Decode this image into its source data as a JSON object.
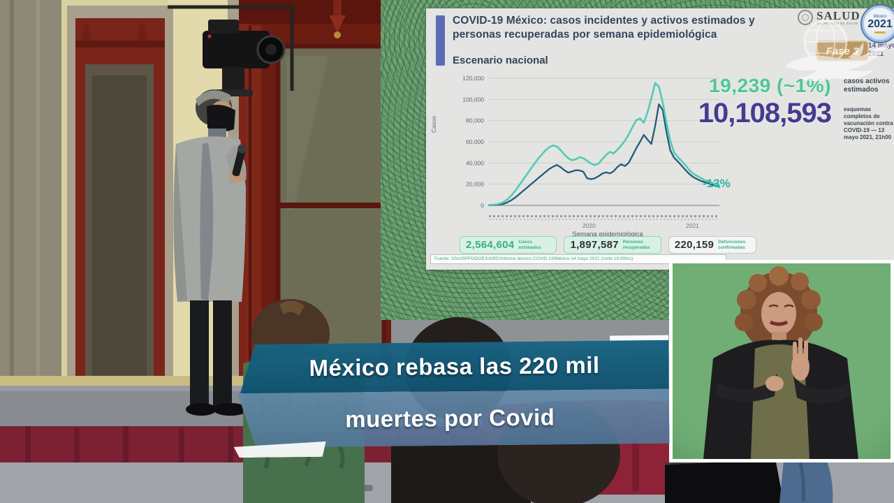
{
  "slide": {
    "title": "COVID-19 México: casos incidentes y activos estimados y personas recuperadas por semana epidemiológica",
    "subtitle": "Escenario nacional",
    "header": {
      "logo": "SALUD",
      "logo_sub": "SECRETARÍA DE SALUD",
      "stamp_top": "México",
      "stamp_year": "2021",
      "date_line1": "14 mayo,",
      "date_line2": "2021"
    },
    "stats": {
      "active": {
        "value": "19,239 (~1%)",
        "label": "casos activos estimados",
        "color": "#4cc893"
      },
      "vaccination": {
        "value": "10,108,593",
        "label": "esquemas completos de vacunación contra COVID-19 — 13 mayo 2021, 21h00",
        "color": "#443c90"
      }
    },
    "bottom_stats": [
      {
        "value": "2,564,604",
        "label": "Casos estimados"
      },
      {
        "value": "1,897,587",
        "label": "Personas recuperadas"
      },
      {
        "value": "220,159",
        "label": "Defunciones confirmadas"
      }
    ],
    "source": "Fuente: SSA/SPPS/DGE/InDRE/Informe técnico COVID-19/México-14 mayo 2021 (corte 19:00hrs)"
  },
  "chart_data": {
    "type": "line",
    "title": "COVID-19 México: casos incidentes y activos estimados y personas recuperadas por semana epidemiológica — Escenario nacional",
    "xlabel": "Semana epidemiológica",
    "ylabel": "Casos",
    "ylim": [
      0,
      120000
    ],
    "yticks": [
      0,
      20000,
      40000,
      60000,
      80000,
      100000,
      120000
    ],
    "grid": true,
    "legend_position": "none",
    "x_year_labels": [
      "2020",
      "2021"
    ],
    "x_year_positions": [
      0.43,
      0.88
    ],
    "annotation": {
      "text": "-13%",
      "color": "#2fb5a0"
    },
    "series": [
      {
        "name": "casos estimados",
        "color": "#52cbb4",
        "width": 2.6,
        "values": [
          300,
          500,
          900,
          1800,
          3500,
          6000,
          9500,
          14000,
          19000,
          24000,
          29000,
          34000,
          39000,
          44000,
          48000,
          52000,
          55000,
          56500,
          55500,
          52000,
          48000,
          44500,
          42500,
          43500,
          45500,
          44500,
          42000,
          39500,
          38000,
          39500,
          43500,
          47500,
          50500,
          49000,
          52500,
          56500,
          61000,
          67000,
          74000,
          80500,
          82000,
          78000,
          88000,
          101000,
          115500,
          112000,
          97000,
          78000,
          61000,
          50000,
          45500,
          42000,
          38000,
          33500,
          30000,
          28000,
          26000,
          24000,
          23000,
          21500,
          20000,
          18200
        ]
      },
      {
        "name": "casos incidentes",
        "color": "#235a78",
        "width": 2.3,
        "values": [
          100,
          200,
          400,
          800,
          1600,
          3000,
          5000,
          7500,
          10500,
          13500,
          16500,
          19500,
          22500,
          25500,
          28500,
          31500,
          34500,
          36500,
          38200,
          36000,
          33000,
          31000,
          32000,
          33200,
          33000,
          31800,
          25500,
          24800,
          25500,
          27500,
          30000,
          31200,
          30200,
          32200,
          36200,
          38800,
          37200,
          40200,
          47000,
          54000,
          60000,
          66500,
          62000,
          58000,
          75000,
          95500,
          90000,
          69000,
          52000,
          45000,
          41500,
          37500,
          33500,
          29800,
          27000,
          25000,
          23200,
          22000,
          21000,
          19500,
          18500,
          17500
        ]
      }
    ]
  },
  "banner": {
    "line1": "México rebasa las 220 mil",
    "line2": "muertes por Covid"
  },
  "watermark": {
    "fase_label": "Fase 3"
  }
}
